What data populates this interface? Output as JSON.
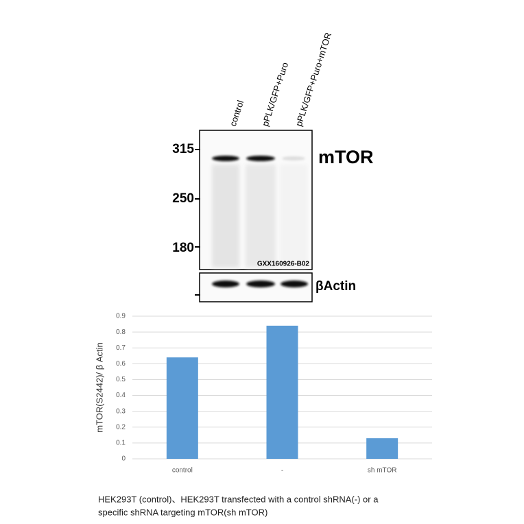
{
  "blot": {
    "lanes": [
      "control",
      "pPLK/GFP+Puro",
      "pPLK/GFP+Puro+mTOR"
    ],
    "markers": [
      315,
      250,
      180
    ],
    "target": "mTOR",
    "loading_control": "βActin",
    "lot": "GXX160926-B02"
  },
  "chart_data": {
    "type": "bar",
    "y_label": "mTOR(S2442)/ β Actin",
    "categories": [
      "control",
      "-",
      "sh mTOR"
    ],
    "values": [
      0.64,
      0.84,
      0.13
    ],
    "color": "#5b9bd5",
    "ylim": [
      0,
      0.9
    ],
    "yticks": [
      0,
      0.1,
      0.2,
      0.3,
      0.4,
      0.5,
      0.6,
      0.7,
      0.8,
      0.9
    ],
    "grid": true
  },
  "caption": [
    "HEK293T (control)、HEK293T transfected with a control shRNA(-) or a",
    "specific  shRNA targeting mTOR(sh mTOR)"
  ]
}
